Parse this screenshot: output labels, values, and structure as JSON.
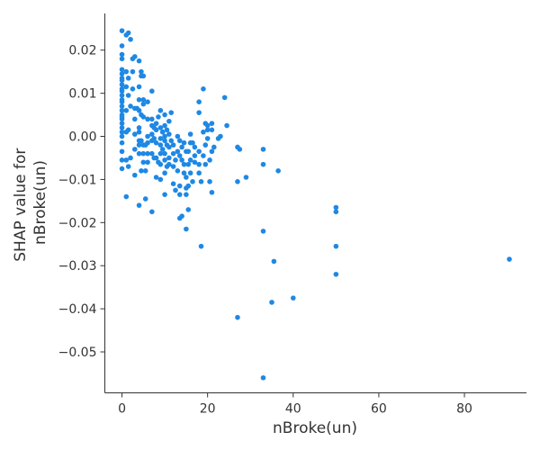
{
  "chart_data": {
    "type": "scatter",
    "title": "",
    "xlabel": "nBroke(un)",
    "ylabel_lines": [
      "SHAP value for",
      "nBroke(un)"
    ],
    "xlim": [
      -4,
      94.5
    ],
    "ylim": [
      -0.0595,
      0.0285
    ],
    "xticks": [
      0,
      20,
      40,
      60,
      80
    ],
    "xtick_labels": [
      "0",
      "20",
      "40",
      "60",
      "80"
    ],
    "yticks": [
      0.02,
      0.01,
      0.0,
      -0.01,
      -0.02,
      -0.03,
      -0.04,
      -0.05
    ],
    "ytick_labels": [
      "0.02",
      "0.01",
      "0.00",
      "−0.01",
      "−0.02",
      "−0.03",
      "−0.04",
      "−0.05"
    ],
    "grid": false,
    "legend": "none",
    "colors": {
      "point": "#1e88e5",
      "axis": "#333333"
    },
    "points": [
      [
        0,
        0.0245
      ],
      [
        0,
        0.021
      ],
      [
        0,
        0.019
      ],
      [
        0,
        0.018
      ],
      [
        0,
        0.0155
      ],
      [
        0,
        0.0145
      ],
      [
        0,
        0.0135
      ],
      [
        0,
        0.013
      ],
      [
        0,
        0.012
      ],
      [
        0,
        0.011
      ],
      [
        0,
        0.0105
      ],
      [
        0,
        0.0095
      ],
      [
        0,
        0.0085
      ],
      [
        0,
        0.008
      ],
      [
        0,
        0.007
      ],
      [
        0,
        0.006
      ],
      [
        0,
        0.005
      ],
      [
        0,
        0.0045
      ],
      [
        0,
        0.004
      ],
      [
        0,
        0.003
      ],
      [
        0,
        0.002
      ],
      [
        0,
        0.001
      ],
      [
        0,
        0.0
      ],
      [
        0,
        -0.0015
      ],
      [
        0,
        -0.0035
      ],
      [
        0,
        -0.0055
      ],
      [
        0,
        -0.0075
      ],
      [
        1,
        0.0235
      ],
      [
        1.5,
        0.024
      ],
      [
        2,
        0.0225
      ],
      [
        2.5,
        0.018
      ],
      [
        3,
        0.0185
      ],
      [
        1,
        0.015
      ],
      [
        1.5,
        0.0135
      ],
      [
        2.5,
        0.015
      ],
      [
        2.5,
        0.011
      ],
      [
        1,
        0.0115
      ],
      [
        1.5,
        0.0095
      ],
      [
        1,
        0.006
      ],
      [
        2,
        0.007
      ],
      [
        1,
        0.001
      ],
      [
        1.5,
        0.0015
      ],
      [
        1,
        -0.0055
      ],
      [
        1.5,
        -0.007
      ],
      [
        2,
        -0.005
      ],
      [
        1,
        -0.014
      ],
      [
        3,
        0.0065
      ],
      [
        3,
        0.004
      ],
      [
        3,
        0.0005
      ],
      [
        3,
        -0.003
      ],
      [
        3,
        -0.009
      ],
      [
        3.5,
        0.0065
      ],
      [
        4,
        0.0175
      ],
      [
        4.5,
        0.015
      ],
      [
        4.5,
        0.014
      ],
      [
        5,
        0.014
      ],
      [
        4,
        0.0115
      ],
      [
        4,
        0.0085
      ],
      [
        5,
        0.0085
      ],
      [
        5,
        0.0075
      ],
      [
        4,
        0.006
      ],
      [
        4.5,
        0.005
      ],
      [
        5,
        0.0045
      ],
      [
        4,
        0.002
      ],
      [
        4,
        0.001
      ],
      [
        4,
        -0.001
      ],
      [
        4.5,
        -0.001
      ],
      [
        4,
        -0.002
      ],
      [
        5,
        -0.002
      ],
      [
        4,
        -0.004
      ],
      [
        5,
        -0.004
      ],
      [
        5,
        -0.006
      ],
      [
        4.5,
        -0.008
      ],
      [
        5.5,
        -0.008
      ],
      [
        4,
        -0.016
      ],
      [
        5.5,
        -0.0145
      ],
      [
        6,
        0.008
      ],
      [
        6,
        0.004
      ],
      [
        6,
        0.0
      ],
      [
        6,
        -0.0015
      ],
      [
        6,
        -0.004
      ],
      [
        6,
        -0.006
      ],
      [
        5.5,
        -0.002
      ],
      [
        7,
        0.0105
      ],
      [
        7,
        0.004
      ],
      [
        7,
        0.0025
      ],
      [
        7.5,
        0.002
      ],
      [
        7,
        0.0005
      ],
      [
        7.5,
        -0.0005
      ],
      [
        7,
        -0.001
      ],
      [
        7,
        -0.004
      ],
      [
        7.5,
        -0.005
      ],
      [
        7,
        -0.0175
      ],
      [
        8,
        0.003
      ],
      [
        8,
        0.0015
      ],
      [
        8,
        -0.0015
      ],
      [
        8,
        -0.005
      ],
      [
        8.5,
        -0.006
      ],
      [
        8,
        -0.0095
      ],
      [
        8.5,
        0.0045
      ],
      [
        9,
        0.006
      ],
      [
        9,
        0.002
      ],
      [
        9,
        -0.0005
      ],
      [
        9,
        -0.002
      ],
      [
        9,
        -0.004
      ],
      [
        9,
        -0.0065
      ],
      [
        9,
        -0.01
      ],
      [
        9.5,
        0.001
      ],
      [
        9.5,
        -0.003
      ],
      [
        10,
        0.005
      ],
      [
        10,
        0.0025
      ],
      [
        10.5,
        0.0015
      ],
      [
        10,
        0.0
      ],
      [
        10,
        -0.001
      ],
      [
        10.5,
        -0.002
      ],
      [
        10,
        -0.004
      ],
      [
        10,
        -0.0055
      ],
      [
        10.5,
        -0.007
      ],
      [
        10,
        -0.0085
      ],
      [
        10,
        -0.0135
      ],
      [
        11,
        0.0035
      ],
      [
        11,
        0.0005
      ],
      [
        11,
        -0.0025
      ],
      [
        11,
        -0.005
      ],
      [
        11,
        -0.0065
      ],
      [
        11.5,
        0.0055
      ],
      [
        11.5,
        -0.001
      ],
      [
        12,
        -0.002
      ],
      [
        12,
        -0.004
      ],
      [
        12,
        -0.007
      ],
      [
        12,
        -0.011
      ],
      [
        12.5,
        -0.0055
      ],
      [
        12.5,
        -0.0125
      ],
      [
        13,
        0.0
      ],
      [
        13,
        -0.0035
      ],
      [
        13,
        -0.008
      ],
      [
        13.5,
        -0.001
      ],
      [
        13.5,
        -0.0045
      ],
      [
        13.5,
        -0.0115
      ],
      [
        13.5,
        -0.0135
      ],
      [
        13.5,
        -0.019
      ],
      [
        14,
        -0.0025
      ],
      [
        14,
        -0.0055
      ],
      [
        14,
        -0.0185
      ],
      [
        14.5,
        -0.0015
      ],
      [
        14.5,
        -0.0065
      ],
      [
        14.5,
        -0.0085
      ],
      [
        15,
        -0.0035
      ],
      [
        15,
        -0.0095
      ],
      [
        15,
        -0.012
      ],
      [
        15,
        -0.0135
      ],
      [
        15,
        -0.0215
      ],
      [
        15.5,
        -0.0035
      ],
      [
        15.5,
        -0.0065
      ],
      [
        15.5,
        -0.0115
      ],
      [
        15.5,
        -0.017
      ],
      [
        16,
        0.0005
      ],
      [
        16,
        -0.0015
      ],
      [
        16,
        -0.0055
      ],
      [
        16,
        -0.0085
      ],
      [
        16.5,
        -0.0015
      ],
      [
        16.5,
        -0.0105
      ],
      [
        17,
        -0.0025
      ],
      [
        17,
        -0.0045
      ],
      [
        17,
        -0.006
      ],
      [
        18,
        0.008
      ],
      [
        18,
        0.0055
      ],
      [
        18,
        -0.0035
      ],
      [
        18,
        -0.0065
      ],
      [
        18,
        -0.0085
      ],
      [
        18.5,
        -0.0105
      ],
      [
        18.5,
        -0.0255
      ],
      [
        19,
        0.011
      ],
      [
        19,
        0.001
      ],
      [
        19,
        -0.0045
      ],
      [
        19.5,
        0.003
      ],
      [
        19.5,
        -0.002
      ],
      [
        19.5,
        -0.0065
      ],
      [
        20,
        0.0025
      ],
      [
        20,
        0.0015
      ],
      [
        20,
        -0.0005
      ],
      [
        20.5,
        -0.0105
      ],
      [
        20.5,
        -0.0055
      ],
      [
        21,
        0.003
      ],
      [
        21,
        0.0015
      ],
      [
        21,
        -0.0035
      ],
      [
        21,
        -0.013
      ],
      [
        21.5,
        -0.0025
      ],
      [
        22.5,
        -0.0005
      ],
      [
        23,
        0.0
      ],
      [
        24,
        0.009
      ],
      [
        24.5,
        0.0025
      ],
      [
        27,
        -0.0025
      ],
      [
        27.5,
        -0.003
      ],
      [
        27,
        -0.0105
      ],
      [
        27,
        -0.042
      ],
      [
        29,
        -0.0095
      ],
      [
        33,
        -0.003
      ],
      [
        33,
        -0.0065
      ],
      [
        33,
        -0.022
      ],
      [
        33,
        -0.056
      ],
      [
        35,
        -0.0385
      ],
      [
        35.5,
        -0.029
      ],
      [
        36.5,
        -0.008
      ],
      [
        40,
        -0.0375
      ],
      [
        50,
        -0.0165
      ],
      [
        50,
        -0.0175
      ],
      [
        50,
        -0.0255
      ],
      [
        50,
        -0.032
      ],
      [
        90.5,
        -0.0285
      ]
    ]
  }
}
